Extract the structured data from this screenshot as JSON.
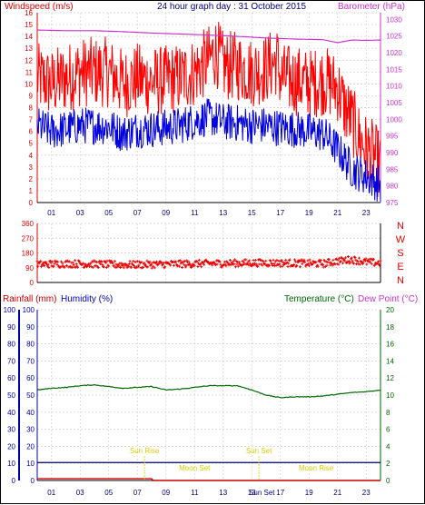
{
  "colors": {
    "wind": "#e00000",
    "gust": "#ff0000",
    "avgwind": "#0000e0",
    "baro": "#cc33cc",
    "winddir": "#ee0000",
    "rain": "#cc0000",
    "humidity": "#0000aa",
    "temp": "#006600",
    "dew": "#cc33cc",
    "grid": "#cfcfcf",
    "suntext": "#dccc00"
  },
  "header": {
    "left": "Windspeed (m/s)",
    "center": "24 hour graph day : 31 October 2015",
    "right": "Barometer (hPa)"
  },
  "chart_data": [
    {
      "type": "line",
      "title": "24 hour graph day : 31 October 2015",
      "ylabel": "Windspeed (m/s)",
      "y2label": "Barometer (hPa)",
      "xlim": [
        0,
        24
      ],
      "ylim": [
        0,
        16
      ],
      "y2lim": [
        975,
        1032
      ],
      "x_ticks": [
        "01",
        "03",
        "05",
        "07",
        "09",
        "11",
        "13",
        "15",
        "17",
        "19",
        "21",
        "23"
      ],
      "y_ticks": [
        0,
        1,
        2,
        3,
        4,
        5,
        6,
        7,
        8,
        9,
        10,
        11,
        12,
        13,
        14,
        15,
        16
      ],
      "y2_ticks": [
        975,
        980,
        985,
        990,
        995,
        1000,
        1005,
        1010,
        1015,
        1020,
        1025,
        1030
      ],
      "series": [
        {
          "name": "Windspeed (m/s)",
          "x": [
            0,
            1,
            2,
            3,
            4,
            5,
            6,
            7,
            8,
            9,
            10,
            11,
            12,
            12.5,
            13,
            14,
            15,
            16,
            16.8,
            17,
            18,
            19,
            20,
            21,
            21.5,
            22,
            22.5,
            23,
            23.5,
            24
          ],
          "values": [
            10.5,
            10,
            10.5,
            11,
            11,
            11,
            10,
            10.5,
            10.2,
            10.3,
            10.5,
            11,
            12,
            12.8,
            11.5,
            11.5,
            11,
            11.3,
            12,
            10.5,
            10.3,
            10,
            10.3,
            9.7,
            8,
            7,
            5.5,
            4.5,
            4,
            3
          ]
        },
        {
          "name": "Barometer (hPa)",
          "x": [
            0,
            2,
            4,
            6,
            8,
            10,
            12,
            14,
            16,
            18,
            20,
            21,
            22,
            23,
            24
          ],
          "values": [
            1026.8,
            1026.6,
            1026.6,
            1026.3,
            1025.9,
            1025.6,
            1025.3,
            1024.9,
            1024.4,
            1024.1,
            1023.9,
            1023,
            1023.8,
            1023.7,
            1023.8
          ]
        },
        {
          "name": "Avg Windspeed",
          "x": [
            0,
            1,
            2,
            3,
            4,
            5,
            6,
            7,
            8,
            9,
            10,
            11,
            12,
            13,
            14,
            15,
            16,
            17,
            18,
            19,
            20,
            21,
            22,
            23,
            24
          ],
          "values": [
            6.5,
            6,
            6.2,
            6.5,
            6.5,
            6.4,
            5.8,
            6.2,
            6.2,
            6.3,
            6.5,
            6.9,
            7.2,
            6.8,
            6.7,
            6.5,
            6.5,
            6.3,
            6.2,
            6.0,
            5.8,
            4.5,
            2.8,
            2.2,
            1.5
          ]
        }
      ]
    },
    {
      "type": "scatter",
      "ylabel": "Wind direction",
      "ylim": [
        0,
        360
      ],
      "y_ticks": [
        0,
        90,
        180,
        270,
        360
      ],
      "y_tick_labels": [
        "0",
        "90",
        "180",
        "270",
        "360"
      ],
      "compass_labels": [
        "N",
        "W",
        "S",
        "E",
        "N"
      ],
      "x_ticks": [
        "01",
        "03",
        "05",
        "07",
        "09",
        "11",
        "13",
        "15",
        "17",
        "19",
        "21",
        "23"
      ],
      "series": [
        {
          "name": "Direction",
          "x": [
            0,
            2,
            4,
            6,
            8,
            10,
            12,
            14,
            16,
            18,
            20,
            21,
            22,
            23,
            24
          ],
          "values": [
            110,
            115,
            112,
            108,
            110,
            113,
            116,
            118,
            120,
            118,
            115,
            130,
            140,
            125,
            118
          ]
        }
      ]
    },
    {
      "type": "line",
      "ylabel_left_1": "Rainfall (mm)",
      "ylabel_left_2": "Humidity (%)",
      "ylabel_right_1": "Temperature (°C)",
      "ylabel_right_2": "Dew Point (°C)",
      "ylim": [
        0,
        100
      ],
      "y2lim": [
        0,
        20
      ],
      "y_ticks": [
        0,
        10,
        20,
        30,
        40,
        50,
        60,
        70,
        80,
        90,
        100
      ],
      "y2_ticks": [
        0,
        2,
        4,
        6,
        8,
        10,
        12,
        14,
        16,
        18,
        20
      ],
      "x_ticks": [
        "01",
        "03",
        "05",
        "07",
        "09",
        "11",
        "13",
        "15",
        "17",
        "19",
        "21",
        "23"
      ],
      "series": [
        {
          "name": "Temperature (°C)",
          "axis": "right",
          "x": [
            0,
            1,
            2,
            3,
            4,
            5,
            6,
            7,
            8,
            9,
            10,
            11,
            12,
            13,
            14,
            15,
            16,
            17,
            18,
            19,
            20,
            21,
            22,
            23,
            24
          ],
          "values": [
            10.6,
            10.8,
            10.9,
            11.1,
            11.2,
            11.0,
            10.8,
            10.9,
            11.0,
            10.6,
            10.7,
            10.9,
            11.1,
            11.1,
            11.1,
            10.6,
            10.0,
            9.7,
            9.8,
            9.8,
            9.9,
            10.1,
            10.3,
            10.4,
            10.6
          ]
        },
        {
          "name": "Dew Point (°C)",
          "axis": "right",
          "x": [
            0,
            24
          ],
          "values": [
            2.1,
            2.1
          ]
        },
        {
          "name": "Rainfall (mm)",
          "axis": "left",
          "x": [
            0,
            8,
            8.1,
            24
          ],
          "values": [
            1,
            1,
            0,
            0
          ]
        }
      ],
      "annotations": [
        {
          "text": "Sun Rise",
          "x": 7.5,
          "row": "upper"
        },
        {
          "text": "Moon Set",
          "x": 11,
          "row": "lower"
        },
        {
          "text": "Sun Set",
          "x": 15.5,
          "row": "upper"
        },
        {
          "text": "Moon Rise",
          "x": 19.5,
          "row": "lower"
        }
      ],
      "x_tick_labels_special": [
        "Sun Rise",
        "Sun Set"
      ]
    }
  ],
  "bottom_labels": {
    "rainfall": "Rainfall (mm)",
    "humidity": "Humidity (%)",
    "temperature": "Temperature (°C)",
    "dewpoint": "Dew Point (°C)",
    "sunset_tick": "Sun Set"
  },
  "compass": [
    "N",
    "W",
    "S",
    "E",
    "N"
  ]
}
